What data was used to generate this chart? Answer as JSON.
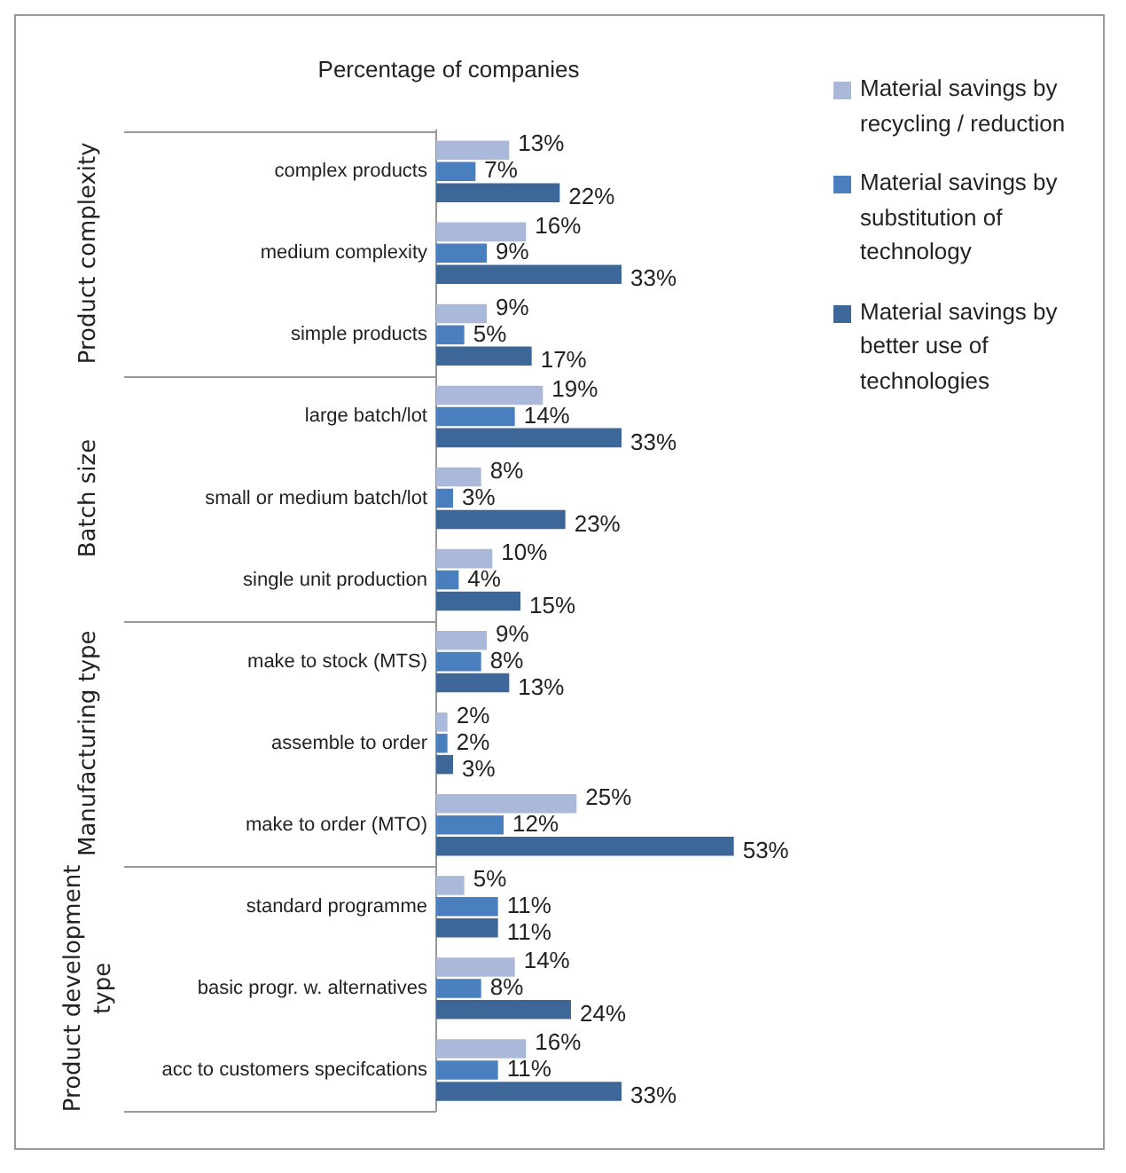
{
  "chart_data": {
    "type": "bar",
    "orientation": "horizontal",
    "title": "Percentage of companies",
    "legend": "right",
    "categories": [
      "complex products",
      "medium complexity",
      "simple products",
      "large batch/lot",
      "small or medium batch/lot",
      "single unit production",
      "make to stock (MTS)",
      "assemble to order",
      "make to order (MTO)",
      "standard programme",
      "basic progr. w. alternatives",
      "acc to customers specifcations"
    ],
    "annotations": [
      "Product complexity",
      "Batch size",
      "Manufacturing type",
      "Product development type"
    ],
    "series": [
      {
        "name": "Material savings by recycling / reduction",
        "color": "#aab9da",
        "values": [
          13,
          16,
          9,
          19,
          8,
          10,
          9,
          2,
          25,
          5,
          14,
          16
        ],
        "value_labels": [
          "13%",
          "16%",
          "9%",
          "19%",
          "8%",
          "10%",
          "9%",
          "2%",
          "25%",
          "5%",
          "14%",
          "16%"
        ]
      },
      {
        "name": "Material savings by substitution of technology",
        "color": "#4a7fbf",
        "values": [
          7,
          9,
          5,
          14,
          3,
          4,
          8,
          2,
          12,
          11,
          8,
          11
        ],
        "value_labels": [
          "7%",
          "9%",
          "5%",
          "14%",
          "3%",
          "4%",
          "8%",
          "2%",
          "12%",
          "11%",
          "8%",
          "11%"
        ]
      },
      {
        "name": "Material savings by better use of technologies",
        "color": "#3d6699",
        "values": [
          22,
          33,
          17,
          33,
          23,
          15,
          13,
          3,
          53,
          11,
          24,
          33
        ],
        "value_labels": [
          "22%",
          "33%",
          "17%",
          "33%",
          "23%",
          "15%",
          "13%",
          "3%",
          "53%",
          "11%",
          "24%",
          "33%"
        ]
      }
    ]
  }
}
